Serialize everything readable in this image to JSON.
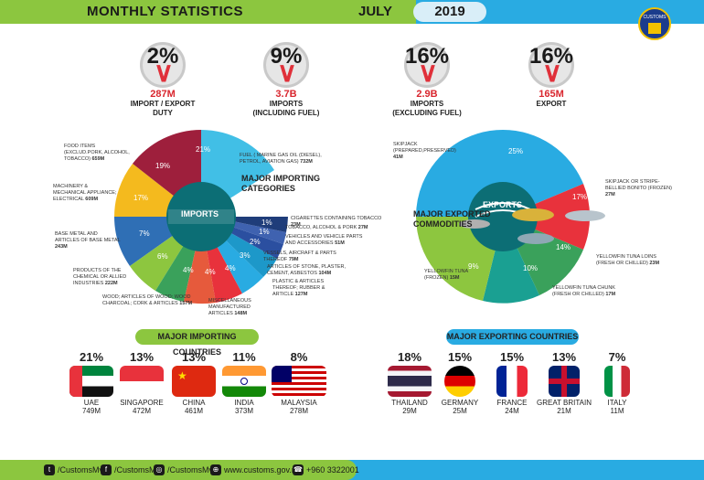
{
  "header": {
    "title": "MONTHLY  STATISTICS",
    "month": "JULY",
    "year": "2019",
    "logo_text": "CUSTOMS"
  },
  "stats": [
    {
      "pct": "2%",
      "value": "287M",
      "label1": "IMPORT / EXPORT",
      "label2": "DUTY"
    },
    {
      "pct": "9%",
      "value": "3.7B",
      "label1": "IMPORTS",
      "label2": "(INCLUDING FUEL)"
    },
    {
      "pct": "16%",
      "value": "2.9B",
      "label1": "IMPORTS",
      "label2": "(EXCLUDING FUEL)"
    },
    {
      "pct": "16%",
      "value": "165M",
      "label1": "EXPORT",
      "label2": ""
    }
  ],
  "imports": {
    "center_label": "IMPORTS",
    "title1": "MAJOR IMPORTING",
    "title2": "CATEGORIES",
    "slice_labels": [
      "21%",
      "19%",
      "17%",
      "7%",
      "6%",
      "4%",
      "4%",
      "4%",
      "3%",
      "2%",
      "1%",
      "1%",
      "1%"
    ],
    "annotations": [
      {
        "text": "FUEL ( MARINE GAS OIL (DIESEL), PETROL, AVIATION GAS)",
        "value": "732M"
      },
      {
        "text": "FOOD ITEMS (EXCLUD.PORK, ALCOHOL, TOBACCO)",
        "value": "659M"
      },
      {
        "text": "MACHINERY & MECHANICAL APPLIANCE; ELECTRICAL",
        "value": "609M"
      },
      {
        "text": "BASE METAL AND ARTICLES OF BASE METAL",
        "value": "243M"
      },
      {
        "text": "PRODUCTS OF THE CHEMICAL OR ALLIED INDUSTRIES",
        "value": "222M"
      },
      {
        "text": "WOOD; ARTICLES OF WOOD; WOOD CHARCOAL; CORK & ARTICLES",
        "value": "157M"
      },
      {
        "text": "MISCELLANEOUS MANUFACTURED ARTICLES",
        "value": "148M"
      },
      {
        "text": "PLASTIC & ARTICLES THEREOF; RUBBER & ARTICLE",
        "value": "127M"
      },
      {
        "text": "ARTICLES OF STONE, PLASTER, CEMENT, ASBESTOS",
        "value": "104M"
      },
      {
        "text": "VESSELS, AIRCRAFT & PARTS THEREOF",
        "value": "79M"
      },
      {
        "text": "VEHICLES AND VEHICLE PARTS AND ACCESSORIES",
        "value": "51M"
      },
      {
        "text": "TOBACCO, ALCOHOL & PORK",
        "value": "27M"
      },
      {
        "text": "CIGARETTES CONTAINING TOBACCO",
        "value": "23M"
      }
    ]
  },
  "exports": {
    "center_label": "EXPORTS",
    "title1": "MAJOR EXPORTED",
    "title2": "COMMODITIES",
    "slice_labels": [
      "25%",
      "17%",
      "14%",
      "10%",
      "9%"
    ],
    "annotations": [
      {
        "text": "SKIPJACK (PREPARED,PRESERVED)",
        "value": "41M"
      },
      {
        "text": "SKIPJACK OR STRIPE-BELLIED BONITO (FROZEN)",
        "value": "27M"
      },
      {
        "text": "YELLOWFIN TUNA LOINS (FRESH OR CHILLED)",
        "value": "23M"
      },
      {
        "text": "YELLOWFIN TUNA CHUNK (FRESH OR CHILLED)",
        "value": "17M"
      },
      {
        "text": "YELLOWFIN TUNA (FROZEN)",
        "value": "15M"
      }
    ]
  },
  "importing_countries": {
    "title": "MAJOR IMPORTING COUNTRIES",
    "items": [
      {
        "pct": "21%",
        "name": "UAE",
        "value": "749M"
      },
      {
        "pct": "13%",
        "name": "SINGAPORE",
        "value": "472M"
      },
      {
        "pct": "13%",
        "name": "CHINA",
        "value": "461M"
      },
      {
        "pct": "11%",
        "name": "INDIA",
        "value": "373M"
      },
      {
        "pct": "8%",
        "name": "MALAYSIA",
        "value": "278M"
      }
    ]
  },
  "exporting_countries": {
    "title": "MAJOR EXPORTING COUNTRIES",
    "items": [
      {
        "pct": "18%",
        "name": "THAILAND",
        "value": "29M"
      },
      {
        "pct": "15%",
        "name": "GERMANY",
        "value": "25M"
      },
      {
        "pct": "15%",
        "name": "FRANCE",
        "value": "24M"
      },
      {
        "pct": "13%",
        "name": "GREAT BRITAIN",
        "value": "21M"
      },
      {
        "pct": "7%",
        "name": "ITALY",
        "value": "11M"
      }
    ]
  },
  "footer": {
    "twitter": "/CustomsMv",
    "facebook": "/CustomsMv",
    "instagram": "/CustomsMv",
    "website": "www.customs.gov.mv",
    "phone": "+960 3322001"
  }
}
